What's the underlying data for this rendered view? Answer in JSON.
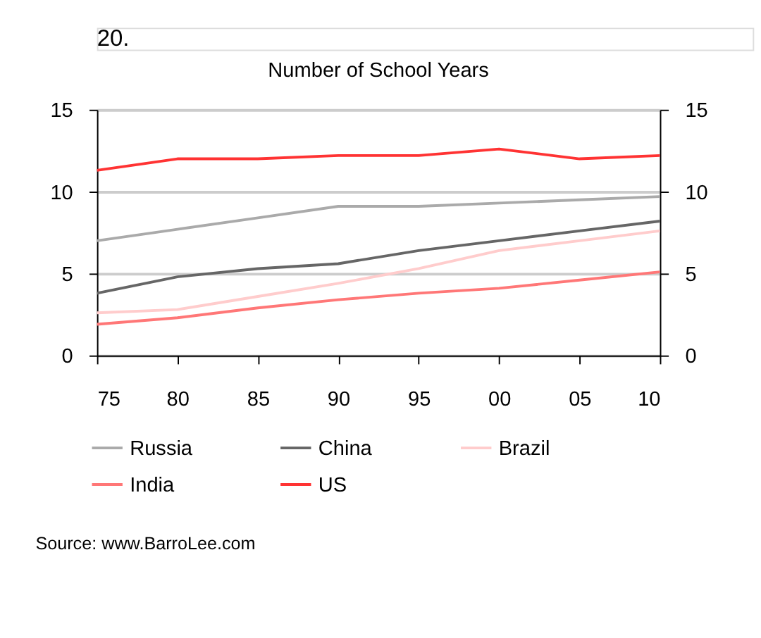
{
  "chart_data": {
    "type": "line",
    "title": "Number of School Years",
    "categories": [
      "75",
      "80",
      "85",
      "90",
      "95",
      "00",
      "05",
      "10"
    ],
    "series": [
      {
        "name": "Russia",
        "color": "#aaaaaa",
        "values": [
          7.0,
          7.7,
          8.4,
          9.1,
          9.1,
          9.3,
          9.5,
          9.7
        ]
      },
      {
        "name": "China",
        "color": "#666666",
        "values": [
          3.8,
          4.8,
          5.3,
          5.6,
          6.4,
          7.0,
          7.6,
          8.2
        ]
      },
      {
        "name": "Brazil",
        "color": "#ffcccc",
        "values": [
          2.6,
          2.8,
          3.6,
          4.4,
          5.3,
          6.4,
          7.0,
          7.6
        ]
      },
      {
        "name": "India",
        "color": "#ff7777",
        "values": [
          1.9,
          2.3,
          2.9,
          3.4,
          3.8,
          4.1,
          4.6,
          5.1
        ]
      },
      {
        "name": "US",
        "color": "#ff3333",
        "values": [
          11.3,
          12.0,
          12.0,
          12.2,
          12.2,
          12.6,
          12.0,
          12.2
        ]
      }
    ],
    "ylim": [
      0,
      15
    ],
    "yticks": [
      0,
      5,
      10,
      15
    ],
    "y2lim": [
      0,
      15
    ],
    "y2ticks": [
      0,
      5,
      10,
      15
    ],
    "grid": "y",
    "legend": "bottom",
    "marker": "none",
    "line_style": "solid",
    "annotations": [
      "20.",
      "Source: www.BarroLee.com"
    ]
  }
}
